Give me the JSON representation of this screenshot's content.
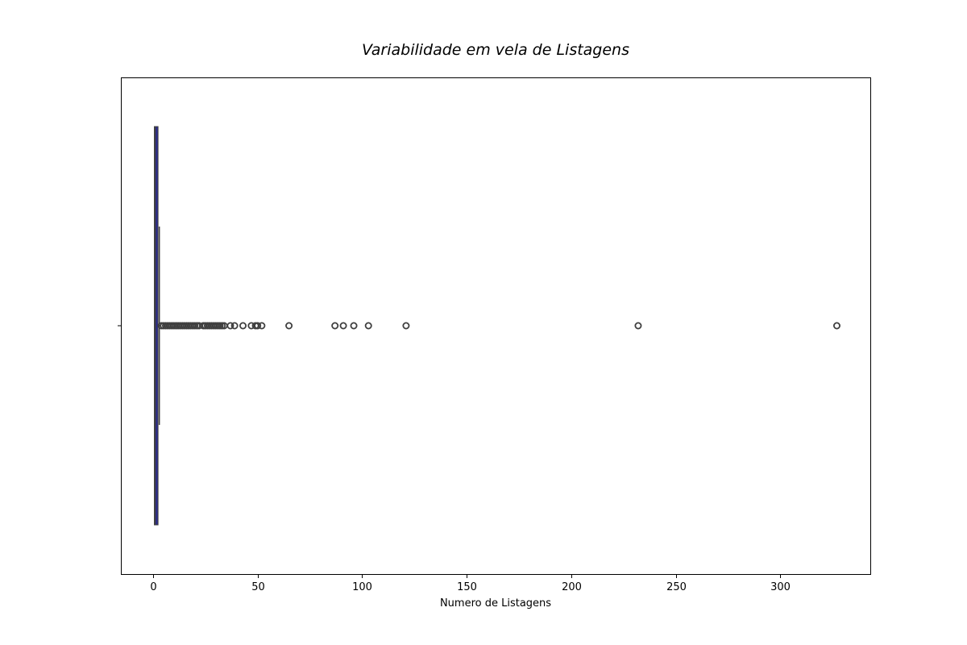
{
  "chart_data": {
    "type": "boxplot",
    "orientation": "horizontal",
    "title": "Variabilidade em vela de Listagens",
    "xlabel": "Numero de Listagens",
    "ylabel": "",
    "xlim": [
      -15,
      343
    ],
    "xticks": [
      0,
      50,
      100,
      150,
      200,
      250,
      300
    ],
    "xtick_labels": [
      "0",
      "50",
      "100",
      "150",
      "200",
      "250",
      "300"
    ],
    "box": {
      "q1": 1,
      "median": 1,
      "q3": 2,
      "whisker_low": 1,
      "whisker_high": 3,
      "fill_color": "#2b2b8c",
      "line_color": "#3f3f3f"
    },
    "outliers": [
      4,
      5,
      6,
      7,
      8,
      9,
      10,
      11,
      12,
      13,
      14,
      15,
      16,
      17,
      18,
      19,
      20,
      21,
      22,
      24,
      25,
      26,
      27,
      28,
      29,
      30,
      31,
      32,
      33,
      34,
      37,
      39,
      43,
      47,
      49,
      50,
      52,
      65,
      87,
      91,
      96,
      103,
      121,
      232,
      327
    ]
  }
}
